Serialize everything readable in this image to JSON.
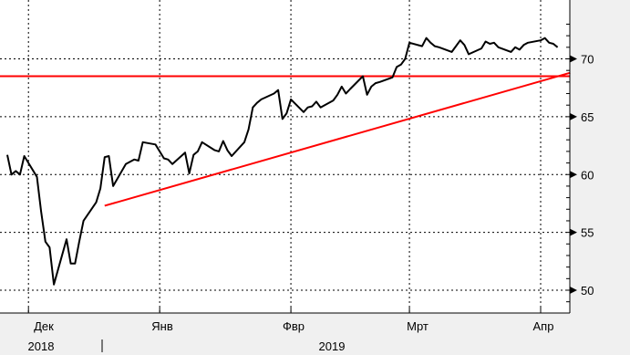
{
  "chart_data": {
    "type": "line",
    "title": "",
    "xlabel": "",
    "ylabel": "",
    "y_axis_position": "right",
    "ylim": [
      48.5,
      73.5
    ],
    "y_ticks": [
      50,
      55,
      60,
      65,
      70
    ],
    "grid": true,
    "month_labels": [
      "Дек",
      "Янв",
      "Фвр",
      "Мрт",
      "Апр"
    ],
    "year_labels": [
      "2018",
      "2019"
    ],
    "series": [
      {
        "color": "#000000",
        "x": [
          "2018-11-26",
          "2018-11-27",
          "2018-11-28",
          "2018-11-29",
          "2018-11-30",
          "2018-12-03",
          "2018-12-04",
          "2018-12-05",
          "2018-12-06",
          "2018-12-07",
          "2018-12-10",
          "2018-12-11",
          "2018-12-12",
          "2018-12-13",
          "2018-12-14",
          "2018-12-17",
          "2018-12-18",
          "2018-12-19",
          "2018-12-20",
          "2018-12-21",
          "2018-12-24",
          "2018-12-26",
          "2018-12-27",
          "2018-12-28",
          "2018-12-31",
          "2019-01-02",
          "2019-01-03",
          "2019-01-04",
          "2019-01-07",
          "2019-01-08",
          "2019-01-09",
          "2019-01-10",
          "2019-01-11",
          "2019-01-14",
          "2019-01-15",
          "2019-01-16",
          "2019-01-17",
          "2019-01-18",
          "2019-01-21",
          "2019-01-22",
          "2019-01-23",
          "2019-01-24",
          "2019-01-25",
          "2019-01-28",
          "2019-01-29",
          "2019-01-30",
          "2019-01-31",
          "2019-02-01",
          "2019-02-04",
          "2019-02-05",
          "2019-02-06",
          "2019-02-07",
          "2019-02-08",
          "2019-02-11",
          "2019-02-12",
          "2019-02-13",
          "2019-02-14",
          "2019-02-15",
          "2019-02-18",
          "2019-02-19",
          "2019-02-20",
          "2019-02-21",
          "2019-02-22",
          "2019-02-25",
          "2019-02-26",
          "2019-02-27",
          "2019-02-28",
          "2019-03-01",
          "2019-03-04",
          "2019-03-05",
          "2019-03-06",
          "2019-03-07",
          "2019-03-08",
          "2019-03-11",
          "2019-03-12",
          "2019-03-13",
          "2019-03-14",
          "2019-03-15",
          "2019-03-18",
          "2019-03-19",
          "2019-03-20",
          "2019-03-21",
          "2019-03-22",
          "2019-03-25",
          "2019-03-26",
          "2019-03-27",
          "2019-03-28",
          "2019-03-29",
          "2019-04-01",
          "2019-04-02",
          "2019-04-03",
          "2019-04-04",
          "2019-04-05"
        ],
        "values": [
          61.7,
          60.0,
          60.3,
          60.0,
          61.6,
          59.8,
          56.8,
          54.2,
          53.7,
          50.5,
          54.4,
          52.3,
          52.3,
          54.2,
          56.0,
          57.6,
          58.8,
          61.5,
          61.6,
          59.0,
          60.9,
          61.3,
          61.2,
          62.8,
          62.6,
          61.4,
          61.3,
          60.9,
          61.9,
          60.1,
          61.7,
          62.0,
          62.8,
          62.1,
          62.0,
          62.9,
          62.1,
          61.6,
          62.8,
          63.9,
          65.8,
          66.2,
          66.5,
          67.0,
          67.3,
          64.8,
          65.3,
          66.5,
          65.4,
          65.8,
          65.9,
          66.3,
          65.8,
          66.4,
          66.9,
          67.6,
          67.0,
          67.4,
          68.5,
          66.9,
          67.6,
          67.9,
          68.0,
          68.4,
          69.3,
          69.5,
          70.0,
          71.4,
          71.1,
          71.8,
          71.4,
          71.1,
          71.0,
          70.6,
          71.1,
          71.6,
          71.2,
          70.4,
          70.9,
          71.5,
          71.3,
          71.4,
          71.0,
          70.6,
          71.0,
          70.8,
          71.2,
          71.4,
          71.6,
          71.8,
          71.4,
          71.3,
          71.0
        ],
        "note": ""
      }
    ],
    "reference_lines": [
      {
        "type": "horizontal",
        "color": "#ff0000",
        "y": 68.5
      },
      {
        "type": "trend",
        "color": "#ff0000",
        "from": [
          "2018-12-19",
          57.3
        ],
        "to": [
          "2019-04-08",
          68.8
        ]
      }
    ]
  }
}
